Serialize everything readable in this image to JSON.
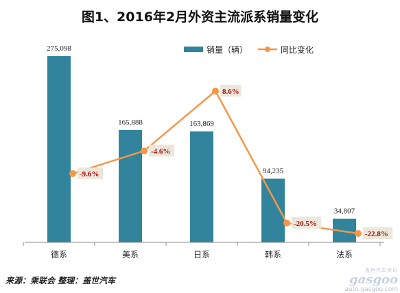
{
  "chart_data": {
    "type": "bar",
    "title": "图1、2016年2月外资主流派系销量变化",
    "categories": [
      "德系",
      "美系",
      "日系",
      "韩系",
      "法系"
    ],
    "series": [
      {
        "name": "销量（辆）",
        "type": "bar",
        "values": [
          275098,
          165888,
          163869,
          94235,
          34807
        ],
        "labels": [
          "275,098",
          "165,888",
          "163,869",
          "94,235",
          "34,807"
        ],
        "color": "#31849b"
      },
      {
        "name": "同比变化",
        "type": "line",
        "values": [
          -9.6,
          -4.6,
          8.6,
          -20.5,
          -22.8
        ],
        "labels": [
          "-9.6%",
          "-4.6%",
          "8.6%",
          "-20.5%",
          "-22.8%"
        ],
        "color": "#f79646"
      }
    ],
    "ylim_bar": [
      0,
      280000
    ],
    "ylim_line": [
      -25,
      10
    ],
    "legend_position": "top-right",
    "grid": false
  },
  "footer": {
    "source": "来源：乘联会  整理：盖世汽车"
  },
  "watermark": {
    "cn": "盖世汽车资讯",
    "logo": "gasgoo",
    "url": "auto.gasgoo.com"
  }
}
